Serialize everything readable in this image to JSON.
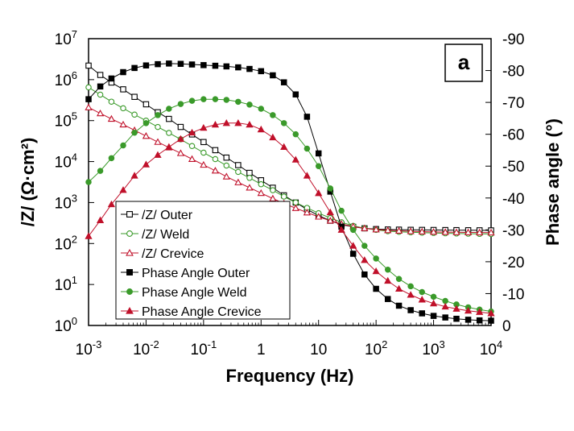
{
  "chart_data": {
    "type": "scatter",
    "panel_label": "a",
    "xlabel": "Frequency (Hz)",
    "ylabel_left": "/Z/ (Ω·cm²)",
    "ylabel_right": "Phase angle (°)",
    "x_scale": "log",
    "xlim": [
      0.001,
      10000
    ],
    "y_left_scale": "log",
    "y_left_lim": [
      1,
      10000000
    ],
    "y_right_lim": [
      0,
      -90
    ],
    "x_tick_labels": [
      {
        "base": "10",
        "exp": "-3"
      },
      {
        "base": "10",
        "exp": "-2"
      },
      {
        "base": "10",
        "exp": "-1"
      },
      {
        "base": "1",
        "exp": ""
      },
      {
        "base": "10",
        "exp": ""
      },
      {
        "base": "10",
        "exp": "2"
      },
      {
        "base": "10",
        "exp": "3"
      },
      {
        "base": "10",
        "exp": "4"
      }
    ],
    "y_left_tick_labels": [
      {
        "base": "10",
        "exp": "0"
      },
      {
        "base": "10",
        "exp": "1"
      },
      {
        "base": "10",
        "exp": "2"
      },
      {
        "base": "10",
        "exp": "3"
      },
      {
        "base": "10",
        "exp": "4"
      },
      {
        "base": "10",
        "exp": "5"
      },
      {
        "base": "10",
        "exp": "6"
      },
      {
        "base": "10",
        "exp": "7"
      }
    ],
    "y_right_tick_labels": [
      "0",
      "-10",
      "-20",
      "-30",
      "-40",
      "-50",
      "-60",
      "-70",
      "-80",
      "-90"
    ],
    "legend_position": "bottom-left",
    "series": [
      {
        "name": "/Z/ Outer",
        "axis": "left",
        "marker": "square",
        "filled": false,
        "color": "#000000",
        "points": [
          [
            0.001,
            2200000
          ],
          [
            0.0016,
            1300000
          ],
          [
            0.0025,
            850000
          ],
          [
            0.004,
            580000
          ],
          [
            0.0063,
            380000
          ],
          [
            0.01,
            250000
          ],
          [
            0.016,
            160000
          ],
          [
            0.025,
            110000
          ],
          [
            0.04,
            70000
          ],
          [
            0.063,
            46000
          ],
          [
            0.1,
            30000
          ],
          [
            0.16,
            19000
          ],
          [
            0.25,
            12500
          ],
          [
            0.4,
            8200
          ],
          [
            0.63,
            5300
          ],
          [
            1,
            3500
          ],
          [
            1.6,
            2300
          ],
          [
            2.5,
            1500
          ],
          [
            4,
            1000
          ],
          [
            6.3,
            680
          ],
          [
            10,
            480
          ],
          [
            16,
            360
          ],
          [
            25,
            290
          ],
          [
            40,
            255
          ],
          [
            63,
            235
          ],
          [
            100,
            225
          ],
          [
            160,
            220
          ],
          [
            250,
            218
          ],
          [
            400,
            216
          ],
          [
            630,
            215
          ],
          [
            1000,
            214
          ],
          [
            1600,
            213
          ],
          [
            2500,
            212
          ],
          [
            4000,
            211
          ],
          [
            6300,
            210
          ],
          [
            10000,
            209
          ]
        ]
      },
      {
        "name": "/Z/ Weld",
        "axis": "left",
        "marker": "circle",
        "filled": false,
        "color": "#3a9a2a",
        "points": [
          [
            0.001,
            650000
          ],
          [
            0.0016,
            430000
          ],
          [
            0.0025,
            290000
          ],
          [
            0.004,
            200000
          ],
          [
            0.0063,
            140000
          ],
          [
            0.01,
            100000
          ],
          [
            0.016,
            70000
          ],
          [
            0.025,
            50000
          ],
          [
            0.04,
            35000
          ],
          [
            0.063,
            24000
          ],
          [
            0.1,
            16500
          ],
          [
            0.16,
            11500
          ],
          [
            0.25,
            8000
          ],
          [
            0.4,
            5600
          ],
          [
            0.63,
            4000
          ],
          [
            1,
            2800
          ],
          [
            1.6,
            2000
          ],
          [
            2.5,
            1400
          ],
          [
            4,
            1000
          ],
          [
            6.3,
            740
          ],
          [
            10,
            550
          ],
          [
            16,
            420
          ],
          [
            25,
            330
          ],
          [
            40,
            270
          ],
          [
            63,
            235
          ],
          [
            100,
            215
          ],
          [
            160,
            200
          ],
          [
            250,
            193
          ],
          [
            400,
            188
          ],
          [
            630,
            184
          ],
          [
            1000,
            181
          ],
          [
            1600,
            178
          ],
          [
            2500,
            176
          ],
          [
            4000,
            174
          ],
          [
            6300,
            172
          ],
          [
            10000,
            171
          ]
        ]
      },
      {
        "name": "/Z/ Crevice",
        "axis": "left",
        "marker": "triangle",
        "filled": false,
        "color": "#c0102a",
        "points": [
          [
            0.001,
            210000
          ],
          [
            0.0016,
            150000
          ],
          [
            0.0025,
            110000
          ],
          [
            0.004,
            80000
          ],
          [
            0.0063,
            58000
          ],
          [
            0.01,
            42000
          ],
          [
            0.016,
            30000
          ],
          [
            0.025,
            22000
          ],
          [
            0.04,
            16000
          ],
          [
            0.063,
            11500
          ],
          [
            0.1,
            8300
          ],
          [
            0.16,
            6000
          ],
          [
            0.25,
            4300
          ],
          [
            0.4,
            3100
          ],
          [
            0.63,
            2300
          ],
          [
            1,
            1700
          ],
          [
            1.6,
            1250
          ],
          [
            2.5,
            950
          ],
          [
            4,
            730
          ],
          [
            6.3,
            570
          ],
          [
            10,
            450
          ],
          [
            16,
            360
          ],
          [
            25,
            300
          ],
          [
            40,
            260
          ],
          [
            63,
            235
          ],
          [
            100,
            220
          ],
          [
            160,
            210
          ],
          [
            250,
            204
          ],
          [
            400,
            199
          ],
          [
            630,
            195
          ],
          [
            1000,
            192
          ],
          [
            1600,
            190
          ],
          [
            2500,
            188
          ],
          [
            4000,
            187
          ],
          [
            6300,
            186
          ],
          [
            10000,
            185
          ]
        ]
      },
      {
        "name": "Phase Angle Outer",
        "axis": "right",
        "marker": "square",
        "filled": true,
        "color": "#000000",
        "points": [
          [
            0.001,
            -71
          ],
          [
            0.0016,
            -75
          ],
          [
            0.0025,
            -77.5
          ],
          [
            0.004,
            -79.5
          ],
          [
            0.0063,
            -80.8
          ],
          [
            0.01,
            -81.6
          ],
          [
            0.016,
            -82
          ],
          [
            0.025,
            -82.2
          ],
          [
            0.04,
            -82.1
          ],
          [
            0.063,
            -81.9
          ],
          [
            0.1,
            -81.7
          ],
          [
            0.16,
            -81.5
          ],
          [
            0.25,
            -81.3
          ],
          [
            0.4,
            -81
          ],
          [
            0.63,
            -80.5
          ],
          [
            1,
            -79.8
          ],
          [
            1.6,
            -78.5
          ],
          [
            2.5,
            -76.3
          ],
          [
            4,
            -72.5
          ],
          [
            6.3,
            -65.5
          ],
          [
            10,
            -54
          ],
          [
            16,
            -42
          ],
          [
            25,
            -31
          ],
          [
            40,
            -22.5
          ],
          [
            63,
            -16
          ],
          [
            100,
            -11.5
          ],
          [
            160,
            -8.3
          ],
          [
            250,
            -6.2
          ],
          [
            400,
            -4.8
          ],
          [
            630,
            -3.8
          ],
          [
            1000,
            -3
          ],
          [
            1600,
            -2.5
          ],
          [
            2500,
            -2.1
          ],
          [
            4000,
            -1.8
          ],
          [
            6300,
            -1.6
          ],
          [
            10000,
            -1.5
          ]
        ]
      },
      {
        "name": "Phase Angle Weld",
        "axis": "right",
        "marker": "circle",
        "filled": true,
        "color": "#3a9a2a",
        "points": [
          [
            0.001,
            -45
          ],
          [
            0.0016,
            -48.5
          ],
          [
            0.0025,
            -52.5
          ],
          [
            0.004,
            -56.5
          ],
          [
            0.0063,
            -60.5
          ],
          [
            0.01,
            -63.5
          ],
          [
            0.016,
            -66
          ],
          [
            0.025,
            -68
          ],
          [
            0.04,
            -69.5
          ],
          [
            0.063,
            -70.5
          ],
          [
            0.1,
            -71
          ],
          [
            0.16,
            -71
          ],
          [
            0.25,
            -70.8
          ],
          [
            0.4,
            -70.2
          ],
          [
            0.63,
            -69.3
          ],
          [
            1,
            -68
          ],
          [
            1.6,
            -66
          ],
          [
            2.5,
            -63.5
          ],
          [
            4,
            -60
          ],
          [
            6.3,
            -55.5
          ],
          [
            10,
            -50
          ],
          [
            16,
            -43
          ],
          [
            25,
            -36
          ],
          [
            40,
            -30
          ],
          [
            63,
            -25
          ],
          [
            100,
            -21
          ],
          [
            160,
            -17.5
          ],
          [
            250,
            -14.6
          ],
          [
            400,
            -12.3
          ],
          [
            630,
            -10.5
          ],
          [
            1000,
            -9
          ],
          [
            1600,
            -7.7
          ],
          [
            2500,
            -6.6
          ],
          [
            4000,
            -5.7
          ],
          [
            6300,
            -5
          ],
          [
            10000,
            -4.4
          ]
        ]
      },
      {
        "name": "Phase Angle Crevice",
        "axis": "right",
        "marker": "triangle",
        "filled": true,
        "color": "#c0102a",
        "points": [
          [
            0.001,
            -28
          ],
          [
            0.0016,
            -33
          ],
          [
            0.0025,
            -38
          ],
          [
            0.004,
            -42.5
          ],
          [
            0.0063,
            -47
          ],
          [
            0.01,
            -50.5
          ],
          [
            0.016,
            -53.5
          ],
          [
            0.025,
            -56
          ],
          [
            0.04,
            -58.5
          ],
          [
            0.063,
            -60.5
          ],
          [
            0.1,
            -62
          ],
          [
            0.16,
            -63
          ],
          [
            0.25,
            -63.5
          ],
          [
            0.4,
            -63.5
          ],
          [
            0.63,
            -63
          ],
          [
            1,
            -61.5
          ],
          [
            1.6,
            -59
          ],
          [
            2.5,
            -56
          ],
          [
            4,
            -52
          ],
          [
            6.3,
            -47
          ],
          [
            10,
            -41.5
          ],
          [
            16,
            -35.5
          ],
          [
            25,
            -30
          ],
          [
            40,
            -25
          ],
          [
            63,
            -20.5
          ],
          [
            100,
            -17
          ],
          [
            160,
            -14
          ],
          [
            250,
            -11.5
          ],
          [
            400,
            -9.6
          ],
          [
            630,
            -8.1
          ],
          [
            1000,
            -6.9
          ],
          [
            1600,
            -5.9
          ],
          [
            2500,
            -5.2
          ],
          [
            4000,
            -4.6
          ],
          [
            6300,
            -4.2
          ],
          [
            10000,
            -3.8
          ]
        ]
      }
    ]
  }
}
